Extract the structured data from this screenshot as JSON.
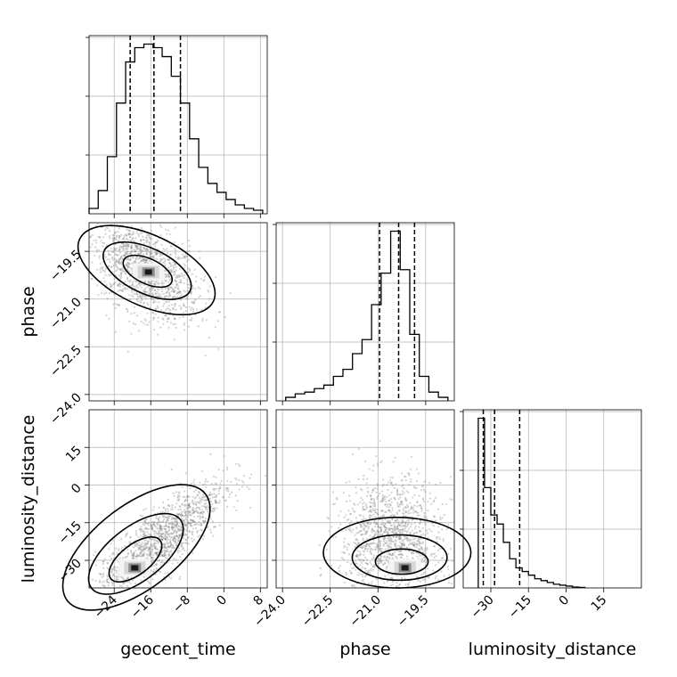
{
  "chart_data": [
    {
      "type": "histogram",
      "panel": "geocent_time marginal",
      "x_param": "geocent_time",
      "xlim": [
        -29.5,
        9.5
      ],
      "bin_edges": [
        -29.5,
        -27.5,
        -25.5,
        -23.5,
        -21.5,
        -19.5,
        -17.5,
        -15.5,
        -13.5,
        -11.5,
        -9.5,
        -7.5,
        -5.5,
        -3.5,
        -1.5,
        0.5,
        2.5,
        4.5,
        6.5,
        8.5
      ],
      "counts": [
        0.03,
        0.13,
        0.32,
        0.62,
        0.85,
        0.93,
        0.95,
        0.93,
        0.88,
        0.77,
        0.62,
        0.42,
        0.26,
        0.17,
        0.12,
        0.08,
        0.05,
        0.03,
        0.02
      ],
      "quantiles": [
        -20.5,
        -15.3,
        -9.5
      ],
      "ticks": [
        -24,
        -16,
        -8,
        0,
        8
      ]
    },
    {
      "type": "histogram",
      "panel": "phase marginal",
      "x_param": "phase",
      "xlim": [
        -24.2,
        -18.6
      ],
      "bin_edges": [
        -23.9,
        -23.6,
        -23.3,
        -23.0,
        -22.7,
        -22.4,
        -22.1,
        -21.8,
        -21.5,
        -21.2,
        -20.9,
        -20.6,
        -20.3,
        -20.0,
        -19.7,
        -19.4,
        -19.1,
        -18.8
      ],
      "counts": [
        0.02,
        0.04,
        0.05,
        0.07,
        0.09,
        0.14,
        0.18,
        0.27,
        0.35,
        0.55,
        0.73,
        0.97,
        0.75,
        0.38,
        0.14,
        0.05,
        0.02
      ],
      "quantiles": [
        -20.95,
        -20.35,
        -19.85
      ],
      "ticks": [
        -24.0,
        -22.5,
        -21.0,
        -19.5
      ]
    },
    {
      "type": "histogram",
      "panel": "luminosity_distance marginal",
      "x_param": "luminosity_distance",
      "xlim": [
        -41,
        30
      ],
      "bin_edges": [
        -35,
        -32.5,
        -30,
        -27.5,
        -25,
        -22.5,
        -20,
        -17.5,
        -15,
        -12.5,
        -10,
        -7.5,
        -5,
        -2.5,
        0,
        2.5,
        5,
        7.5
      ],
      "counts": [
        0.93,
        0.55,
        0.4,
        0.35,
        0.25,
        0.16,
        0.11,
        0.09,
        0.07,
        0.05,
        0.04,
        0.03,
        0.02,
        0.015,
        0.01,
        0.005,
        0.003
      ],
      "quantiles": [
        -33,
        -28.5,
        -18.5
      ],
      "ticks": [
        -30,
        -15,
        0,
        15
      ]
    },
    {
      "type": "scatter_density",
      "panel": "phase vs geocent_time",
      "x_param": "geocent_time",
      "y_param": "phase",
      "xlim": [
        -29.5,
        9.5
      ],
      "ylim": [
        -24.2,
        -18.6
      ],
      "sample_mean": [
        -17.5,
        -20.1
      ],
      "sample_sd": [
        6.0,
        0.8
      ],
      "correlation": -0.5,
      "density_mode": [
        -16.5,
        -20.15
      ],
      "yticks": [
        -19.5,
        -21.0,
        -22.5,
        -24.0
      ]
    },
    {
      "type": "scatter_density",
      "panel": "luminosity_distance vs geocent_time",
      "x_param": "geocent_time",
      "y_param": "luminosity_distance",
      "xlim": [
        -29.5,
        9.5
      ],
      "ylim": [
        -41,
        30
      ],
      "sample_mean": [
        -14.0,
        -22.0
      ],
      "sample_sd": [
        7.0,
        12.0
      ],
      "correlation": 0.82,
      "density_mode": [
        -19.5,
        -33
      ],
      "xticks": [
        -24,
        -16,
        -8,
        0,
        8
      ],
      "yticks": [
        -30,
        -15,
        0,
        15
      ]
    },
    {
      "type": "scatter_density",
      "panel": "luminosity_distance vs phase",
      "x_param": "phase",
      "y_param": "luminosity_distance",
      "xlim": [
        -24.2,
        -18.6
      ],
      "ylim": [
        -41,
        30
      ],
      "sample_mean": [
        -20.6,
        -22.0
      ],
      "sample_sd": [
        0.8,
        12.0
      ],
      "correlation": 0.0,
      "density_mode": [
        -20.15,
        -33
      ],
      "xticks": [
        -24.0,
        -22.5,
        -21.0,
        -19.5
      ]
    }
  ],
  "labels": {
    "x_geocent_time": "geocent_time",
    "x_phase": "phase",
    "x_luminosity_distance": "luminosity_distance",
    "y_phase": "phase",
    "y_luminosity_distance": "luminosity_distance"
  }
}
